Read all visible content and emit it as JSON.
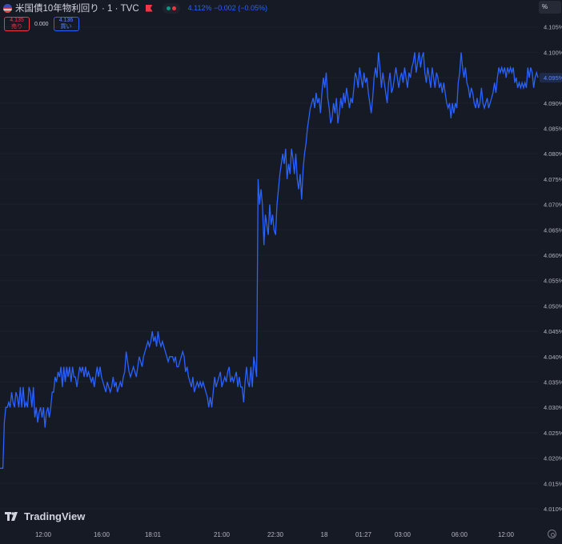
{
  "header": {
    "symbol_title": "米国債10年物利回り · 1 · TVC",
    "last_quote": "4.112% −0.002 (−0.05%)"
  },
  "trade_panel": {
    "sell_price": "4.135",
    "sell_label": "売り",
    "spread": "0.000",
    "buy_price": "4.136",
    "buy_label": "買い"
  },
  "scale_button": "%",
  "brand": "TradingView",
  "colors": {
    "background": "#161a25",
    "line": "#2962ff",
    "sell": "#f23645",
    "buy": "#2962ff",
    "text": "#d1d4dc",
    "axis_text": "#b2b5be"
  },
  "chart_data": {
    "type": "line",
    "title": "米国債10年物利回り · 1 · TVC",
    "xlabel": "",
    "ylabel": "",
    "ylim": [
      4.008,
      4.113
    ],
    "y_ticks": [
      "4.105%",
      "4.100%",
      "4.095%",
      "4.090%",
      "4.085%",
      "4.080%",
      "4.075%",
      "4.070%",
      "4.065%",
      "4.060%",
      "4.055%",
      "4.050%",
      "4.045%",
      "4.040%",
      "4.035%",
      "4.030%",
      "4.025%",
      "4.020%",
      "4.015%",
      "4.010%"
    ],
    "x_ticks": [
      "12:00",
      "16:00",
      "18:01",
      "21:00",
      "22:30",
      "18",
      "01:27",
      "03:00",
      "06:00",
      "12:00"
    ],
    "last_value_label": "4.095%",
    "x_start_time": "09:00",
    "sample_interval_min": 1.5,
    "series": [
      {
        "values": [
          4.018,
          4.018,
          4.018,
          4.027,
          4.03,
          4.03,
          4.031,
          4.03,
          4.033,
          4.031,
          4.03,
          4.033,
          4.032,
          4.03,
          4.034,
          4.03,
          4.034,
          4.03,
          4.031,
          4.03,
          4.034,
          4.033,
          4.03,
          4.034,
          4.028,
          4.03,
          4.027,
          4.029,
          4.03,
          4.028,
          4.03,
          4.026,
          4.029,
          4.03,
          4.028,
          4.03,
          4.033,
          4.033,
          4.036,
          4.035,
          4.037,
          4.036,
          4.038,
          4.034,
          4.038,
          4.035,
          4.038,
          4.036,
          4.038,
          4.035,
          4.038,
          4.036,
          4.036,
          4.034,
          4.036,
          4.038,
          4.037,
          4.038,
          4.036,
          4.038,
          4.036,
          4.037,
          4.036,
          4.035,
          4.036,
          4.034,
          4.036,
          4.038,
          4.036,
          4.038,
          4.036,
          4.035,
          4.034,
          4.033,
          4.035,
          4.034,
          4.033,
          4.034,
          4.036,
          4.034,
          4.035,
          4.033,
          4.034,
          4.035,
          4.034,
          4.036,
          4.037,
          4.041,
          4.039,
          4.037,
          4.036,
          4.037,
          4.038,
          4.037,
          4.036,
          4.038,
          4.04,
          4.039,
          4.038,
          4.04,
          4.041,
          4.042,
          4.043,
          4.042,
          4.043,
          4.045,
          4.043,
          4.044,
          4.042,
          4.045,
          4.043,
          4.042,
          4.043,
          4.042,
          4.041,
          4.04,
          4.039,
          4.04,
          4.04,
          4.04,
          4.039,
          4.04,
          4.038,
          4.038,
          4.039,
          4.04,
          4.041,
          4.04,
          4.037,
          4.038,
          4.036,
          4.035,
          4.034,
          4.036,
          4.033,
          4.034,
          4.035,
          4.034,
          4.035,
          4.034,
          4.035,
          4.034,
          4.033,
          4.032,
          4.03,
          4.032,
          4.03,
          4.033,
          4.036,
          4.034,
          4.035,
          4.036,
          4.037,
          4.034,
          4.035,
          4.036,
          4.035,
          4.037,
          4.038,
          4.035,
          4.036,
          4.035,
          4.036,
          4.037,
          4.034,
          4.036,
          4.034,
          4.034,
          4.031,
          4.035,
          4.038,
          4.035,
          4.034,
          4.038,
          4.034,
          4.04,
          4.038,
          4.036,
          4.075,
          4.07,
          4.073,
          4.07,
          4.062,
          4.068,
          4.066,
          4.064,
          4.07,
          4.066,
          4.068,
          4.065,
          4.064,
          4.07,
          4.073,
          4.076,
          4.078,
          4.08,
          4.078,
          4.081,
          4.075,
          4.078,
          4.076,
          4.081,
          4.079,
          4.076,
          4.08,
          4.075,
          4.073,
          4.076,
          4.071,
          4.077,
          4.08,
          4.082,
          4.085,
          4.087,
          4.089,
          4.09,
          4.091,
          4.089,
          4.092,
          4.09,
          4.091,
          4.088,
          4.092,
          4.095,
          4.093,
          4.096,
          4.091,
          4.089,
          4.086,
          4.087,
          4.09,
          4.088,
          4.091,
          4.086,
          4.088,
          4.091,
          4.089,
          4.092,
          4.09,
          4.093,
          4.091,
          4.089,
          4.091,
          4.09,
          4.093,
          4.096,
          4.095,
          4.093,
          4.097,
          4.095,
          4.093,
          4.096,
          4.094,
          4.095,
          4.092,
          4.09,
          4.088,
          4.091,
          4.095,
          4.097,
          4.095,
          4.1,
          4.097,
          4.093,
          4.096,
          4.094,
          4.092,
          4.09,
          4.094,
          4.096,
          4.092,
          4.093,
          4.095,
          4.097,
          4.095,
          4.093,
          4.095,
          4.096,
          4.094,
          4.097,
          4.095,
          4.093,
          4.096,
          4.095,
          4.097,
          4.098,
          4.1,
          4.096,
          4.098,
          4.1,
          4.097,
          4.099,
          4.1,
          4.096,
          4.094,
          4.097,
          4.095,
          4.093,
          4.097,
          4.095,
          4.093,
          4.096,
          4.095,
          4.093,
          4.094,
          4.092,
          4.094,
          4.092,
          4.09,
          4.089,
          4.09,
          4.087,
          4.09,
          4.088,
          4.09,
          4.089,
          4.094,
          4.096,
          4.1,
          4.097,
          4.095,
          4.097,
          4.094,
          4.093,
          4.091,
          4.093,
          4.092,
          4.09,
          4.089,
          4.091,
          4.089,
          4.09,
          4.093,
          4.09,
          4.089,
          4.09,
          4.091,
          4.089,
          4.09,
          4.091,
          4.092,
          4.094,
          4.092,
          4.095,
          4.097,
          4.096,
          4.097,
          4.096,
          4.097,
          4.095,
          4.097,
          4.096,
          4.097,
          4.096,
          4.097,
          4.094,
          4.095,
          4.093,
          4.094,
          4.093,
          4.094,
          4.093,
          4.094,
          4.093,
          4.097,
          4.095,
          4.097,
          4.096,
          4.093,
          4.095,
          4.096,
          4.095
        ]
      }
    ]
  }
}
